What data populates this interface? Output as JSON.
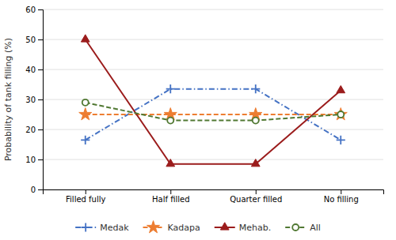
{
  "chart_data": {
    "type": "line",
    "categories": [
      "Filled fully",
      "Half filled",
      "Quarter filled",
      "No filling"
    ],
    "series": [
      {
        "name": "Medak",
        "color": "#4472C4",
        "values": [
          16.5,
          33.5,
          33.5,
          16.5
        ],
        "marker": "plus",
        "line_style": "dashdot"
      },
      {
        "name": "Kadapa",
        "color": "#ED7D31",
        "values": [
          25,
          25,
          25,
          25
        ],
        "marker": "star",
        "line_style": "dashed"
      },
      {
        "name": "Mehab.",
        "color": "#9B1C1C",
        "values": [
          50,
          8.5,
          8.5,
          33
        ],
        "marker": "triangle",
        "line_style": "solid"
      },
      {
        "name": "All",
        "color": "#507832",
        "values": [
          29,
          23,
          23,
          25
        ],
        "marker": "open-circle",
        "line_style": "dashed"
      }
    ],
    "ylabel": "Probability of tank filling (%)",
    "ylim": [
      0,
      60
    ],
    "yticks": [
      0,
      10,
      20,
      30,
      40,
      50,
      60
    ],
    "grid": true,
    "legend": "bottom"
  }
}
